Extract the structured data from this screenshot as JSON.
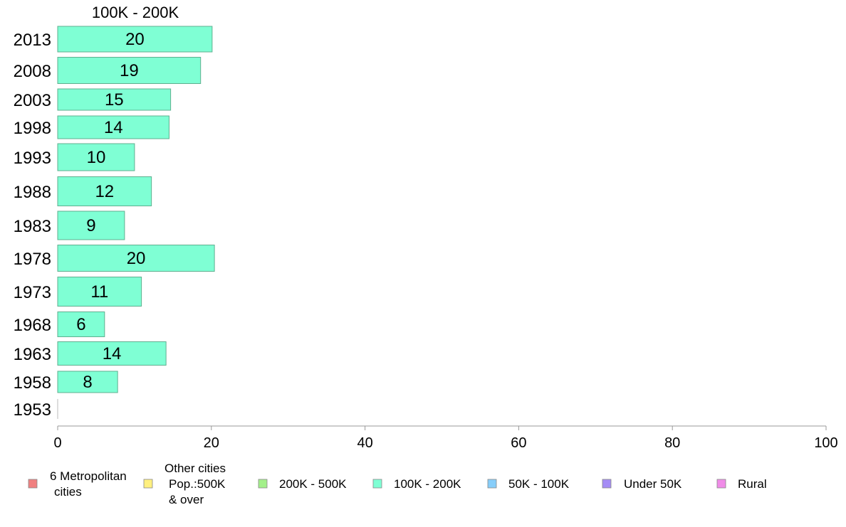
{
  "chart_data": {
    "type": "bar",
    "orientation": "horizontal",
    "title": "100K - 200K",
    "categories": [
      "2013",
      "2008",
      "2003",
      "1998",
      "1993",
      "1988",
      "1983",
      "1978",
      "1973",
      "1968",
      "1963",
      "1958",
      "1953"
    ],
    "values": [
      20,
      19,
      15,
      14,
      10,
      12,
      9,
      20,
      11,
      6,
      14,
      8,
      0
    ],
    "data_labels": [
      "20",
      "19",
      "15",
      "14",
      "10",
      "12",
      "9",
      "20",
      "11",
      "6",
      "14",
      "8",
      ""
    ],
    "bar_values": [
      20.1,
      18.6,
      14.7,
      14.5,
      10.0,
      12.2,
      8.7,
      20.4,
      10.9,
      6.1,
      14.1,
      7.8,
      0
    ],
    "xlim": [
      0,
      100
    ],
    "xticks": [
      "0",
      "20",
      "40",
      "60",
      "80",
      "100"
    ],
    "xlabel": "",
    "ylabel": "",
    "grid": false,
    "bar_color": "#7fffd4",
    "bar_edge_color": "#5faf8f",
    "legend_position": "bottom",
    "legend": [
      {
        "lines": [
          "6 Metropolitan",
          "cities"
        ],
        "color": "#f08080"
      },
      {
        "lines": [
          "Other cities",
          "Pop.:500K",
          "& over"
        ],
        "color": "#fff07f"
      },
      {
        "lines": [
          "200K - 500K"
        ],
        "color": "#a3f08a"
      },
      {
        "lines": [
          "100K - 200K"
        ],
        "color": "#7fffd4"
      },
      {
        "lines": [
          "50K - 100K"
        ],
        "color": "#87cefa"
      },
      {
        "lines": [
          "Under 50K"
        ],
        "color": "#a58cf5"
      },
      {
        "lines": [
          "Rural"
        ],
        "color": "#f08ce8"
      }
    ]
  }
}
